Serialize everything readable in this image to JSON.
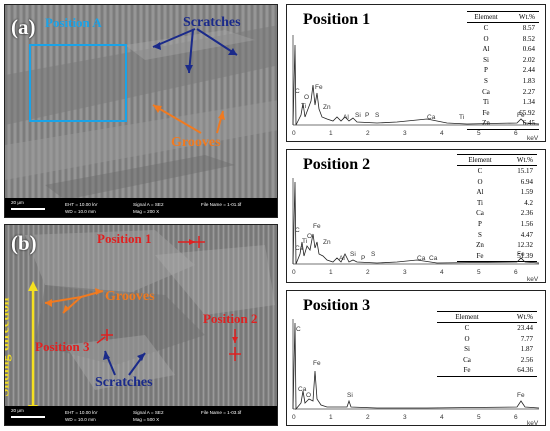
{
  "panel_a": {
    "letter": "(a)",
    "labels": {
      "position_a": "Position A",
      "scratches": "Scratches",
      "grooves": "Grooves"
    },
    "info": {
      "scale": "20 μm",
      "eht": "EHT = 10.00 kV",
      "wd": "WD = 10.0 mm",
      "signal": "Signal A = SE2",
      "mag": "Mag =  200 X",
      "file": "File Name = 1-01.tif"
    }
  },
  "panel_b": {
    "letter": "(b)",
    "labels": {
      "position_1": "Position 1",
      "position_2": "Position 2",
      "position_3": "Position 3",
      "grooves": "Grooves",
      "scratches": "Scratches",
      "sliding": "Sliding direction"
    },
    "info": {
      "scale": "20 μm",
      "eht": "EHT = 10.00 kV",
      "wd": "WD = 10.0 mm",
      "signal": "Signal A = SE2",
      "mag": "Mag =  500 X",
      "file": "File Name = 1-03.tif"
    }
  },
  "eds": [
    {
      "title": "Position 1",
      "header": [
        "Element",
        "Wt.%"
      ],
      "rows": [
        [
          "C",
          "8.57"
        ],
        [
          "O",
          "8.52"
        ],
        [
          "Al",
          "0.64"
        ],
        [
          "Si",
          "2.02"
        ],
        [
          "P",
          "2.44"
        ],
        [
          "S",
          "1.83"
        ],
        [
          "Ca",
          "2.27"
        ],
        [
          "Ti",
          "1.34"
        ],
        [
          "Fe",
          "65.92"
        ],
        [
          "Zn",
          "6.45"
        ]
      ],
      "peaks": [
        "C",
        "O",
        "Ti",
        "Fe",
        "Zn",
        "Al",
        "Si",
        "P",
        "S",
        "Ca",
        "Ti",
        "Fe"
      ],
      "ticks": [
        "0",
        "1",
        "2",
        "3",
        "4",
        "5",
        "6"
      ],
      "unit": "keV"
    },
    {
      "title": "Position 2",
      "header": [
        "Element",
        "Wt.%"
      ],
      "rows": [
        [
          "C",
          "15.17"
        ],
        [
          "O",
          "6.94"
        ],
        [
          "Al",
          "1.59"
        ],
        [
          "Ti",
          "4.2"
        ],
        [
          "Ca",
          "2.36"
        ],
        [
          "P",
          "1.56"
        ],
        [
          "S",
          "4.47"
        ],
        [
          "Zn",
          "12.32"
        ],
        [
          "Fe",
          "51.39"
        ]
      ],
      "peaks": [
        "C",
        "Ca",
        "Ti",
        "Fe",
        "O",
        "Zn",
        "Al",
        "Si",
        "P",
        "S",
        "Ca",
        "Ca",
        "Fe"
      ],
      "ticks": [
        "0",
        "1",
        "2",
        "3",
        "4",
        "5",
        "6"
      ],
      "unit": "keV"
    },
    {
      "title": "Position 3",
      "header": [
        "Element",
        "Wt.%"
      ],
      "rows": [
        [
          "C",
          "23.44"
        ],
        [
          "O",
          "7.77"
        ],
        [
          "Si",
          "1.87"
        ],
        [
          "Ca",
          "2.56"
        ],
        [
          "Fe",
          "64.36"
        ]
      ],
      "peaks": [
        "C",
        "Fe",
        "Ca",
        "O",
        "Si",
        "Fe"
      ],
      "ticks": [
        "0",
        "1",
        "2",
        "3",
        "4",
        "5",
        "6"
      ],
      "unit": "keV"
    }
  ],
  "colors": {
    "cyan": "#1aa3e8",
    "navy": "#1a2a8a",
    "orange": "#f07a20",
    "red": "#e02020",
    "yellow": "#f5e020"
  }
}
